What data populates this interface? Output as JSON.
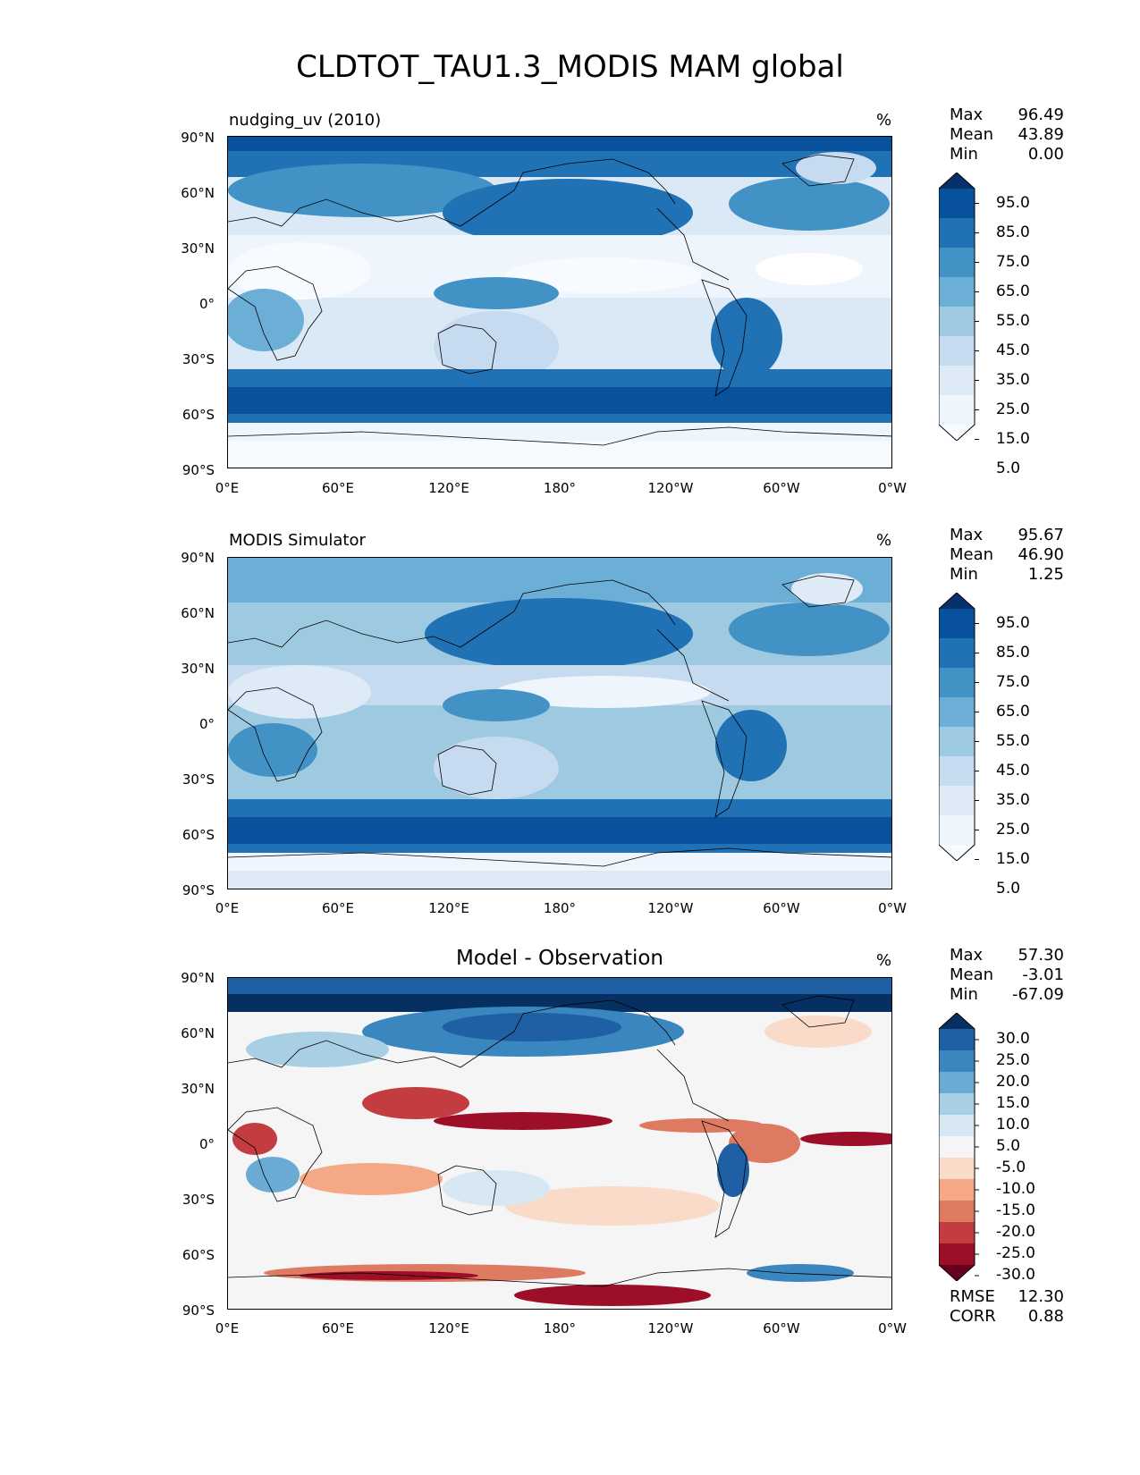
{
  "figure": {
    "title": "CLDTOT_TAU1.3_MODIS MAM global"
  },
  "axes": {
    "lat_ticks": [
      "90°N",
      "60°N",
      "30°N",
      "0°",
      "30°S",
      "60°S",
      "90°S"
    ],
    "lon_ticks": [
      "0°E",
      "60°E",
      "120°E",
      "180°",
      "120°W",
      "60°W",
      "0°W"
    ]
  },
  "panels": [
    {
      "title": "nudging_uv (2010)",
      "units": "%",
      "stats": {
        "max_label": "Max",
        "max": "96.49",
        "mean_label": "Mean",
        "mean": "43.89",
        "min_label": "Min",
        "min": "0.00"
      },
      "colorbar": {
        "labels": [
          "95.0",
          "85.0",
          "75.0",
          "65.0",
          "55.0",
          "45.0",
          "35.0",
          "25.0",
          "15.0",
          "5.0"
        ],
        "colors": [
          "#08306b",
          "#08519c",
          "#2171b5",
          "#4292c6",
          "#6baed6",
          "#9ecae1",
          "#c6dbef",
          "#deebf7",
          "#eef5fc",
          "#f7fbff"
        ]
      }
    },
    {
      "title": "MODIS Simulator",
      "units": "%",
      "stats": {
        "max_label": "Max",
        "max": "95.67",
        "mean_label": "Mean",
        "mean": "46.90",
        "min_label": "Min",
        "min": "1.25"
      },
      "colorbar": {
        "labels": [
          "95.0",
          "85.0",
          "75.0",
          "65.0",
          "55.0",
          "45.0",
          "35.0",
          "25.0",
          "15.0",
          "5.0"
        ],
        "colors": [
          "#08306b",
          "#08519c",
          "#2171b5",
          "#4292c6",
          "#6baed6",
          "#9ecae1",
          "#c6dbef",
          "#deebf7",
          "#eef5fc",
          "#f7fbff"
        ]
      }
    },
    {
      "title": "Model - Observation",
      "units": "%",
      "stats": {
        "max_label": "Max",
        "max": "57.30",
        "mean_label": "Mean",
        "mean": "-3.01",
        "min_label": "Min",
        "min": "-67.09"
      },
      "colorbar": {
        "labels": [
          "30.0",
          "25.0",
          "20.0",
          "15.0",
          "10.0",
          "5.0",
          "-5.0",
          "-10.0",
          "-15.0",
          "-20.0",
          "-25.0",
          "-30.0"
        ],
        "colors": [
          "#053061",
          "#1f5fa3",
          "#3a87c0",
          "#6aabd3",
          "#a8cfe4",
          "#d8e8f2",
          "#f5f5f5",
          "#fadbc9",
          "#f4a886",
          "#df7a62",
          "#c33c3f",
          "#9d0f29",
          "#67001f"
        ]
      },
      "metrics": {
        "rmse_label": "RMSE",
        "rmse": "12.30",
        "corr_label": "CORR",
        "corr": "0.88"
      }
    }
  ]
}
